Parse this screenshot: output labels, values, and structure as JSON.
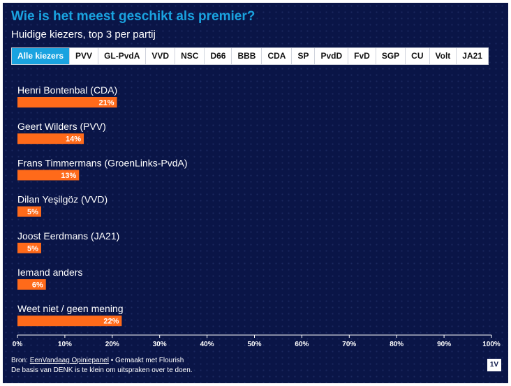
{
  "header": {
    "title": "Wie is het meest geschikt als premier?",
    "subtitle": "Huidige kiezers, top 3 per partij"
  },
  "tabs": [
    "Alle kiezers",
    "PVV",
    "GL-PvdA",
    "VVD",
    "NSC",
    "D66",
    "BBB",
    "CDA",
    "SP",
    "PvdD",
    "FvD",
    "SGP",
    "CU",
    "Volt",
    "JA21"
  ],
  "active_tab": "Alle kiezers",
  "chart_data": {
    "type": "bar",
    "orientation": "horizontal",
    "categories": [
      "Henri Bontenbal (CDA)",
      "Geert Wilders (PVV)",
      "Frans Timmermans (GroenLinks-PvdA)",
      "Dilan Yeşilgöz (VVD)",
      "Joost Eerdmans (JA21)",
      "Iemand anders",
      "Weet niet / geen mening"
    ],
    "values": [
      21,
      14,
      13,
      5,
      5,
      6,
      22
    ],
    "value_labels": [
      "21%",
      "14%",
      "13%",
      "5%",
      "5%",
      "6%",
      "22%"
    ],
    "xlim": [
      0,
      100
    ],
    "x_ticks": [
      0,
      10,
      20,
      30,
      40,
      50,
      60,
      70,
      80,
      90,
      100
    ],
    "x_tick_labels": [
      "0%",
      "10%",
      "20%",
      "30%",
      "40%",
      "50%",
      "60%",
      "70%",
      "80%",
      "90%",
      "100%"
    ],
    "grid": false,
    "bar_color": "#ff6a1a"
  },
  "footer": {
    "source_prefix": "Bron: ",
    "source_link": "EenVandaag Opiniepanel",
    "source_suffix": " • Gemaakt met Flourish",
    "note": "De basis van DENK is te klein om uitspraken over te doen.",
    "logo": "1V"
  },
  "colors": {
    "background": "#0a1547",
    "accent": "#1aa3e0",
    "bar": "#ff6a1a",
    "text": "#ffffff"
  }
}
